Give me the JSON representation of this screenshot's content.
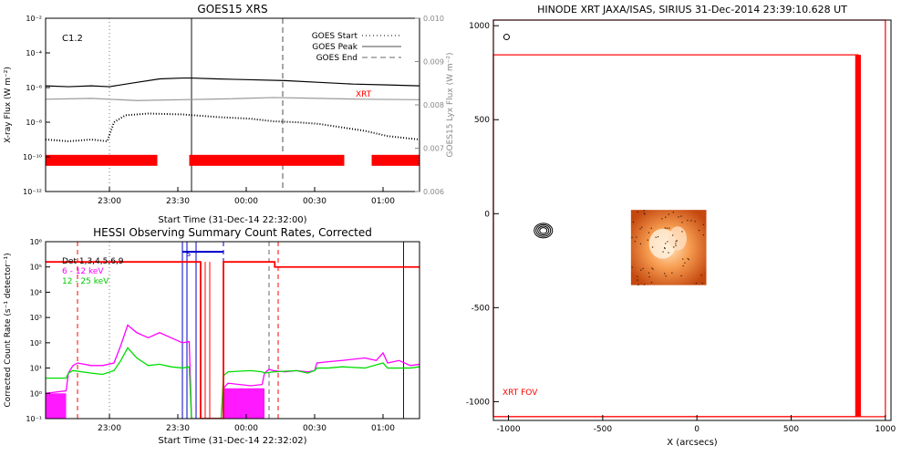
{
  "colors": {
    "red": "#ff0000",
    "blue": "#0000cc",
    "magenta": "#ff00ff",
    "green": "#00dd00",
    "gray": "#999999",
    "black": "#000000",
    "limb": "#e84a1a"
  },
  "chart_data": [
    {
      "type": "line",
      "title": "GOES15 XRS",
      "xlabel": "Start Time (31-Dec-14 22:32:00)",
      "ylabel": "X-ray Flux (W m⁻²)",
      "y2label": "GOES15 Lyx Flux (W m⁻²)",
      "x_ticks": [
        "23:00",
        "23:30",
        "00:00",
        "00:30",
        "01:00"
      ],
      "x_tick_minutes": [
        28,
        58,
        88,
        118,
        148
      ],
      "xlim_minutes": [
        0,
        164
      ],
      "ylim_log10": [
        -12,
        -2
      ],
      "y_ticks": [
        "10⁻²",
        "10⁻⁴",
        "10⁻⁶",
        "10⁻⁸",
        "10⁻¹⁰",
        "10⁻¹²"
      ],
      "y_tick_exponents": [
        -2,
        -4,
        -6,
        -8,
        -10,
        -12
      ],
      "y2_ticks": [
        "0.010",
        "0.009",
        "0.008",
        "0.007",
        "0.006"
      ],
      "y2lim": [
        0.006,
        0.01
      ],
      "class_label": "C1.2",
      "xrt_label": "XRT",
      "legend": {
        "placement": "top-right",
        "items": [
          "GOES Start",
          "GOES Peak",
          "GOES End"
        ]
      },
      "event_lines_minutes": {
        "start": 28,
        "peak": 64,
        "end": 104
      },
      "series": [
        {
          "name": "",
          "color": "#000000",
          "style": "solid",
          "x": [
            0,
            10,
            20,
            28,
            40,
            50,
            60,
            64,
            75,
            90,
            105,
            120,
            135,
            150,
            164
          ],
          "log10_y": [
            -5.9,
            -5.95,
            -5.9,
            -5.95,
            -5.7,
            -5.5,
            -5.45,
            -5.45,
            -5.5,
            -5.55,
            -5.6,
            -5.7,
            -5.8,
            -5.85,
            -5.9
          ]
        },
        {
          "name": "",
          "color": "#999999",
          "style": "solid",
          "axis": "right",
          "x": [
            0,
            20,
            40,
            60,
            80,
            100,
            120,
            140,
            164
          ],
          "y2": [
            0.00813,
            0.00815,
            0.0081,
            0.00812,
            0.00814,
            0.00817,
            0.00815,
            0.00813,
            0.00812
          ]
        },
        {
          "name": "",
          "color": "#000000",
          "style": "dotted",
          "x": [
            0,
            10,
            20,
            27,
            30,
            35,
            45,
            60,
            75,
            90,
            100,
            110,
            120,
            130,
            140,
            150,
            164
          ],
          "log10_y": [
            -9.0,
            -9.1,
            -9.0,
            -9.1,
            -8.0,
            -7.6,
            -7.5,
            -7.55,
            -7.7,
            -7.8,
            -7.95,
            -8.0,
            -8.1,
            -8.3,
            -8.5,
            -8.8,
            -9.0
          ]
        }
      ],
      "coverage_bars_minutes": [
        [
          0,
          49
        ],
        [
          63,
          131
        ],
        [
          143,
          164
        ]
      ],
      "coverage_level_log10": -10.2
    },
    {
      "type": "line",
      "title": "HESSI Observing Summary Count Rates, Corrected",
      "xlabel": "Start Time (31-Dec-14 22:32:02)",
      "ylabel": "Corrected Count Rate (s⁻¹ detector⁻¹)",
      "x_ticks": [
        "23:00",
        "23:30",
        "00:00",
        "00:30",
        "01:00"
      ],
      "x_tick_minutes": [
        28,
        58,
        88,
        118,
        148
      ],
      "xlim_minutes": [
        0,
        164
      ],
      "ylim_log10": [
        -1,
        6
      ],
      "y_ticks": [
        "10⁶",
        "10⁵",
        "10⁴",
        "10³",
        "10²",
        "10¹",
        "10⁰",
        "10⁻¹"
      ],
      "y_tick_exponents": [
        6,
        5,
        4,
        3,
        2,
        1,
        0,
        -1
      ],
      "legend_lines": [
        "Det 1,3,4,5,6,9",
        "6 - 12 keV",
        "12 - 25 keV"
      ],
      "s_label": "S",
      "series": [
        {
          "name": "6 - 12 keV",
          "color": "#ff00ff",
          "x": [
            0,
            9,
            10,
            12,
            14,
            20,
            25,
            30,
            33,
            36,
            40,
            45,
            50,
            55,
            60,
            63,
            64,
            77,
            78,
            80,
            90,
            95,
            96,
            98,
            100,
            105,
            110,
            115,
            118,
            119,
            124,
            130,
            135,
            140,
            145,
            148,
            150,
            155,
            160,
            164
          ],
          "log10_y": [
            0.0,
            0.1,
            0.8,
            1.1,
            1.2,
            1.1,
            1.1,
            1.2,
            1.9,
            2.7,
            2.4,
            2.2,
            2.4,
            2.2,
            2.0,
            2.05,
            -1,
            -1,
            0.2,
            0.4,
            0.3,
            0.35,
            0.8,
            0.95,
            0.9,
            0.85,
            0.9,
            0.85,
            0.9,
            1.2,
            1.25,
            1.3,
            1.35,
            1.4,
            1.3,
            1.6,
            1.2,
            1.3,
            1.1,
            1.15
          ]
        },
        {
          "name": "12 - 25 keV",
          "color": "#00dd00",
          "x": [
            0,
            9,
            10,
            12,
            20,
            25,
            30,
            33,
            36,
            40,
            45,
            50,
            55,
            60,
            63,
            64,
            77,
            78,
            80,
            90,
            95,
            96,
            100,
            110,
            115,
            118,
            119,
            124,
            130,
            140,
            148,
            150,
            160,
            164
          ],
          "log10_y": [
            0.6,
            0.6,
            0.8,
            0.9,
            0.8,
            0.75,
            0.9,
            1.3,
            1.8,
            1.4,
            1.1,
            1.15,
            1.05,
            1.0,
            1.05,
            -1,
            -1,
            0.7,
            0.85,
            0.9,
            0.85,
            0.8,
            0.85,
            0.9,
            0.8,
            0.9,
            1.0,
            1.0,
            1.05,
            1.0,
            1.2,
            1.0,
            1.0,
            1.05
          ]
        },
        {
          "name": "Det 1,3,4,5,6,9",
          "color": "#ff0000",
          "style": "step",
          "x": [
            0,
            63,
            68,
            78,
            100,
            100.5,
            164
          ],
          "log10_y": [
            5.2,
            5.2,
            -1,
            5.2,
            5.2,
            5.0,
            5.0
          ]
        }
      ],
      "attenuator_blocks": [
        {
          "x": [
            0,
            9
          ],
          "level_log10": 0.0
        },
        {
          "x": [
            78,
            96
          ],
          "level_log10": 0.2
        }
      ],
      "red_dashed_minutes": [
        14,
        102
      ],
      "gray_dashed_minutes": [
        98
      ],
      "gray_dotted_minutes": [
        28
      ],
      "blue_solid_minutes": [
        60,
        62,
        66,
        157
      ],
      "blue_dashed_minutes": [
        78
      ],
      "s_bar_minutes": [
        60,
        78
      ],
      "s_bar_level_log10": 5.6,
      "red_solid_minutes": [
        70,
        72
      ]
    },
    {
      "type": "scatter",
      "title": "HINODE XRT JAXA/ISAS, SIRIUS 31-Dec-2014 23:39:10.628 UT",
      "xlabel": "X (arcsecs)",
      "ylabel": "",
      "xlim": [
        -1080,
        1030
      ],
      "ylim": [
        -1100,
        1030
      ],
      "x_ticks": [
        -1000,
        -500,
        0,
        500,
        1000
      ],
      "y_ticks": [
        1000,
        500,
        0,
        -500,
        -1000
      ],
      "fov_label": "XRT FOV",
      "fov_boxes": [
        {
          "x": [
            -1080,
            1000
          ],
          "y": [
            -1080,
            1030
          ]
        },
        {
          "x": [
            -1080,
            855
          ],
          "y": [
            -1080,
            845
          ]
        }
      ],
      "fov_edge_bar_x": [
        840,
        870
      ],
      "image_patch": {
        "x": [
          -350,
          50
        ],
        "y": [
          -380,
          20
        ]
      },
      "contour_center": [
        -815,
        -90
      ],
      "small_circle_center": [
        -1010,
        940
      ]
    }
  ]
}
